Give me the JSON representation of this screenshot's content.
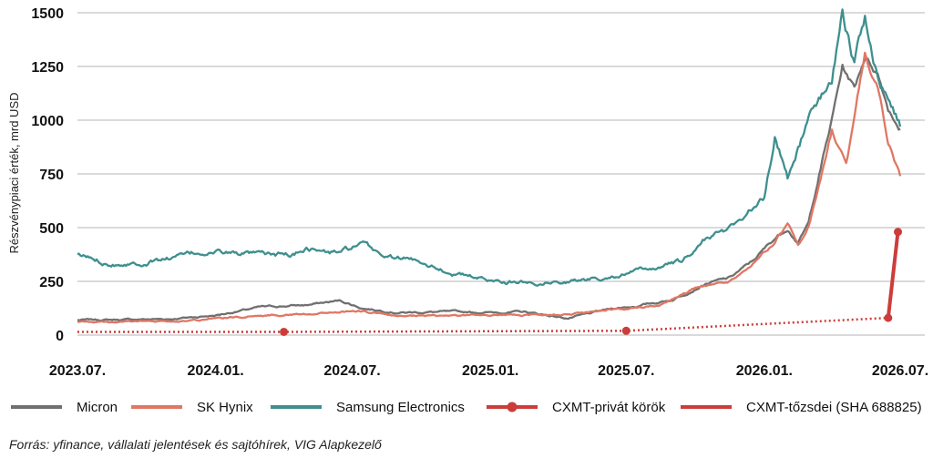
{
  "chart_data": {
    "type": "line",
    "ylabel": "Részvénypiaci érték, mrd USD",
    "xlabel": "",
    "ylim": [
      0,
      1500
    ],
    "y_ticks": [
      0,
      250,
      500,
      750,
      1000,
      1250,
      1500
    ],
    "y_tick_labels": [
      "0",
      "250",
      "500",
      "750",
      "1000",
      "1250",
      "1500"
    ],
    "x_range": [
      "2023-07-01",
      "2026-07-01"
    ],
    "x_ticks": [
      "2023-07-01",
      "2024-01-01",
      "2024-07-01",
      "2025-01-01",
      "2025-07-01",
      "2026-01-01",
      "2026-07-01"
    ],
    "x_tick_labels": [
      "2023.07.",
      "2024.01.",
      "2024.07.",
      "2025.01.",
      "2025.07.",
      "2026.01.",
      "2026.07."
    ],
    "grid": "horizontal",
    "legend_position": "bottom",
    "series": [
      {
        "name": "Micron",
        "color": "#707070",
        "style": "line",
        "points": [
          [
            "2023-07-01",
            70
          ],
          [
            "2023-09-01",
            72
          ],
          [
            "2023-11-01",
            75
          ],
          [
            "2024-01-01",
            92
          ],
          [
            "2024-03-01",
            130
          ],
          [
            "2024-05-01",
            140
          ],
          [
            "2024-06-15",
            160
          ],
          [
            "2024-07-15",
            125
          ],
          [
            "2024-09-01",
            105
          ],
          [
            "2024-11-01",
            108
          ],
          [
            "2025-01-01",
            105
          ],
          [
            "2025-02-15",
            108
          ],
          [
            "2025-04-15",
            78
          ],
          [
            "2025-06-15",
            125
          ],
          [
            "2025-07-15",
            135
          ],
          [
            "2025-09-01",
            165
          ],
          [
            "2025-10-15",
            240
          ],
          [
            "2025-11-15",
            265
          ],
          [
            "2025-12-15",
            340
          ],
          [
            "2026-01-15",
            450
          ],
          [
            "2026-02-01",
            500
          ],
          [
            "2026-02-15",
            430
          ],
          [
            "2026-03-01",
            520
          ],
          [
            "2026-03-15",
            750
          ],
          [
            "2026-04-01",
            1000
          ],
          [
            "2026-04-15",
            1250
          ],
          [
            "2026-05-01",
            1150
          ],
          [
            "2026-05-15",
            1300
          ],
          [
            "2026-06-01",
            1220
          ],
          [
            "2026-06-15",
            1060
          ],
          [
            "2026-07-01",
            960
          ]
        ]
      },
      {
        "name": "SK Hynix",
        "color": "#e07764",
        "style": "line",
        "points": [
          [
            "2023-07-01",
            60
          ],
          [
            "2023-09-01",
            62
          ],
          [
            "2023-11-01",
            65
          ],
          [
            "2024-01-01",
            75
          ],
          [
            "2024-03-01",
            92
          ],
          [
            "2024-05-01",
            100
          ],
          [
            "2024-07-15",
            112
          ],
          [
            "2024-09-01",
            85
          ],
          [
            "2024-11-01",
            90
          ],
          [
            "2025-01-01",
            95
          ],
          [
            "2025-03-01",
            92
          ],
          [
            "2025-05-01",
            100
          ],
          [
            "2025-07-01",
            125
          ],
          [
            "2025-08-15",
            140
          ],
          [
            "2025-10-01",
            220
          ],
          [
            "2025-11-15",
            250
          ],
          [
            "2025-12-15",
            320
          ],
          [
            "2026-01-15",
            430
          ],
          [
            "2026-02-01",
            520
          ],
          [
            "2026-02-15",
            420
          ],
          [
            "2026-03-01",
            500
          ],
          [
            "2026-03-15",
            700
          ],
          [
            "2026-04-01",
            950
          ],
          [
            "2026-04-20",
            790
          ],
          [
            "2026-05-01",
            1000
          ],
          [
            "2026-05-15",
            1310
          ],
          [
            "2026-06-01",
            1150
          ],
          [
            "2026-06-15",
            900
          ],
          [
            "2026-07-01",
            740
          ]
        ]
      },
      {
        "name": "Samsung Electronics",
        "color": "#3f8f8f",
        "style": "line",
        "points": [
          [
            "2023-07-01",
            370
          ],
          [
            "2023-08-15",
            335
          ],
          [
            "2023-10-01",
            340
          ],
          [
            "2023-12-15",
            385
          ],
          [
            "2024-01-15",
            385
          ],
          [
            "2024-03-01",
            370
          ],
          [
            "2024-04-15",
            375
          ],
          [
            "2024-05-01",
            410
          ],
          [
            "2024-06-01",
            380
          ],
          [
            "2024-07-15",
            415
          ],
          [
            "2024-08-15",
            365
          ],
          [
            "2024-10-01",
            345
          ],
          [
            "2024-11-15",
            285
          ],
          [
            "2025-01-01",
            255
          ],
          [
            "2025-03-01",
            245
          ],
          [
            "2025-05-01",
            255
          ],
          [
            "2025-07-01",
            285
          ],
          [
            "2025-08-15",
            320
          ],
          [
            "2025-09-15",
            340
          ],
          [
            "2025-10-15",
            450
          ],
          [
            "2025-11-15",
            495
          ],
          [
            "2025-12-15",
            590
          ],
          [
            "2026-01-01",
            640
          ],
          [
            "2026-01-15",
            930
          ],
          [
            "2026-02-01",
            740
          ],
          [
            "2026-03-01",
            1000
          ],
          [
            "2026-04-01",
            1200
          ],
          [
            "2026-04-15",
            1490
          ],
          [
            "2026-05-01",
            1270
          ],
          [
            "2026-05-15",
            1480
          ],
          [
            "2026-06-01",
            1200
          ],
          [
            "2026-06-15",
            1100
          ],
          [
            "2026-07-01",
            970
          ]
        ]
      },
      {
        "name": "CXMT-privát körök",
        "color": "#cc3d3a",
        "style": "dotted-markers",
        "points": [
          [
            "2023-07-01",
            15
          ],
          [
            "2024-04-01",
            15
          ],
          [
            "2025-07-01",
            20
          ],
          [
            "2026-06-15",
            80
          ]
        ],
        "markers": [
          [
            "2024-04-01",
            15
          ],
          [
            "2025-07-01",
            20
          ],
          [
            "2026-06-15",
            80
          ]
        ]
      },
      {
        "name": "CXMT-tőzsdei (SHA 688825)",
        "color": "#cc3d3a",
        "style": "thick-line",
        "points": [
          [
            "2026-06-15",
            80
          ],
          [
            "2026-06-28",
            480
          ]
        ],
        "markers": [
          [
            "2026-06-28",
            480
          ]
        ]
      }
    ]
  },
  "source": "Forrás: yfinance, vállalati jelentések és sajtóhírek, VIG Alapkezelő"
}
